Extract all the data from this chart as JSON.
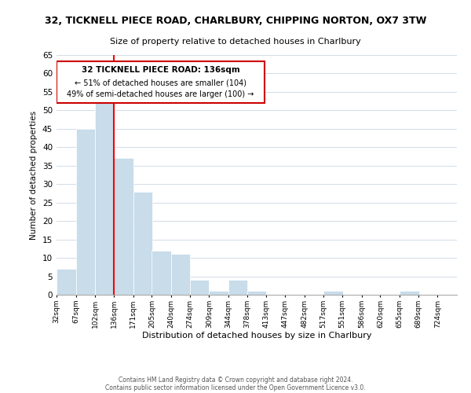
{
  "title_main": "32, TICKNELL PIECE ROAD, CHARLBURY, CHIPPING NORTON, OX7 3TW",
  "subtitle": "Size of property relative to detached houses in Charlbury",
  "xlabel": "Distribution of detached houses by size in Charlbury",
  "ylabel": "Number of detached properties",
  "bin_edges": [
    32,
    67,
    102,
    136,
    171,
    205,
    240,
    274,
    309,
    344,
    378,
    413,
    447,
    482,
    517,
    551,
    586,
    620,
    655,
    689,
    724
  ],
  "bar_heights": [
    7,
    45,
    53,
    37,
    28,
    12,
    11,
    4,
    1,
    4,
    1,
    0,
    0,
    0,
    1,
    0,
    0,
    0,
    1,
    0
  ],
  "bar_color": "#c8dcea",
  "bar_edge_color": "#ffffff",
  "red_line_x": 136,
  "ylim": [
    0,
    65
  ],
  "yticks": [
    0,
    5,
    10,
    15,
    20,
    25,
    30,
    35,
    40,
    45,
    50,
    55,
    60,
    65
  ],
  "annotation_line1": "32 TICKNELL PIECE ROAD: 136sqm",
  "annotation_line2": "← 51% of detached houses are smaller (104)",
  "annotation_line3": "49% of semi-detached houses are larger (100) →",
  "annotation_box_color": "#ffffff",
  "annotation_border_color": "#cc0000",
  "footer_line1": "Contains HM Land Registry data © Crown copyright and database right 2024.",
  "footer_line2": "Contains public sector information licensed under the Open Government Licence v3.0.",
  "background_color": "#ffffff",
  "grid_color": "#d0dce8"
}
